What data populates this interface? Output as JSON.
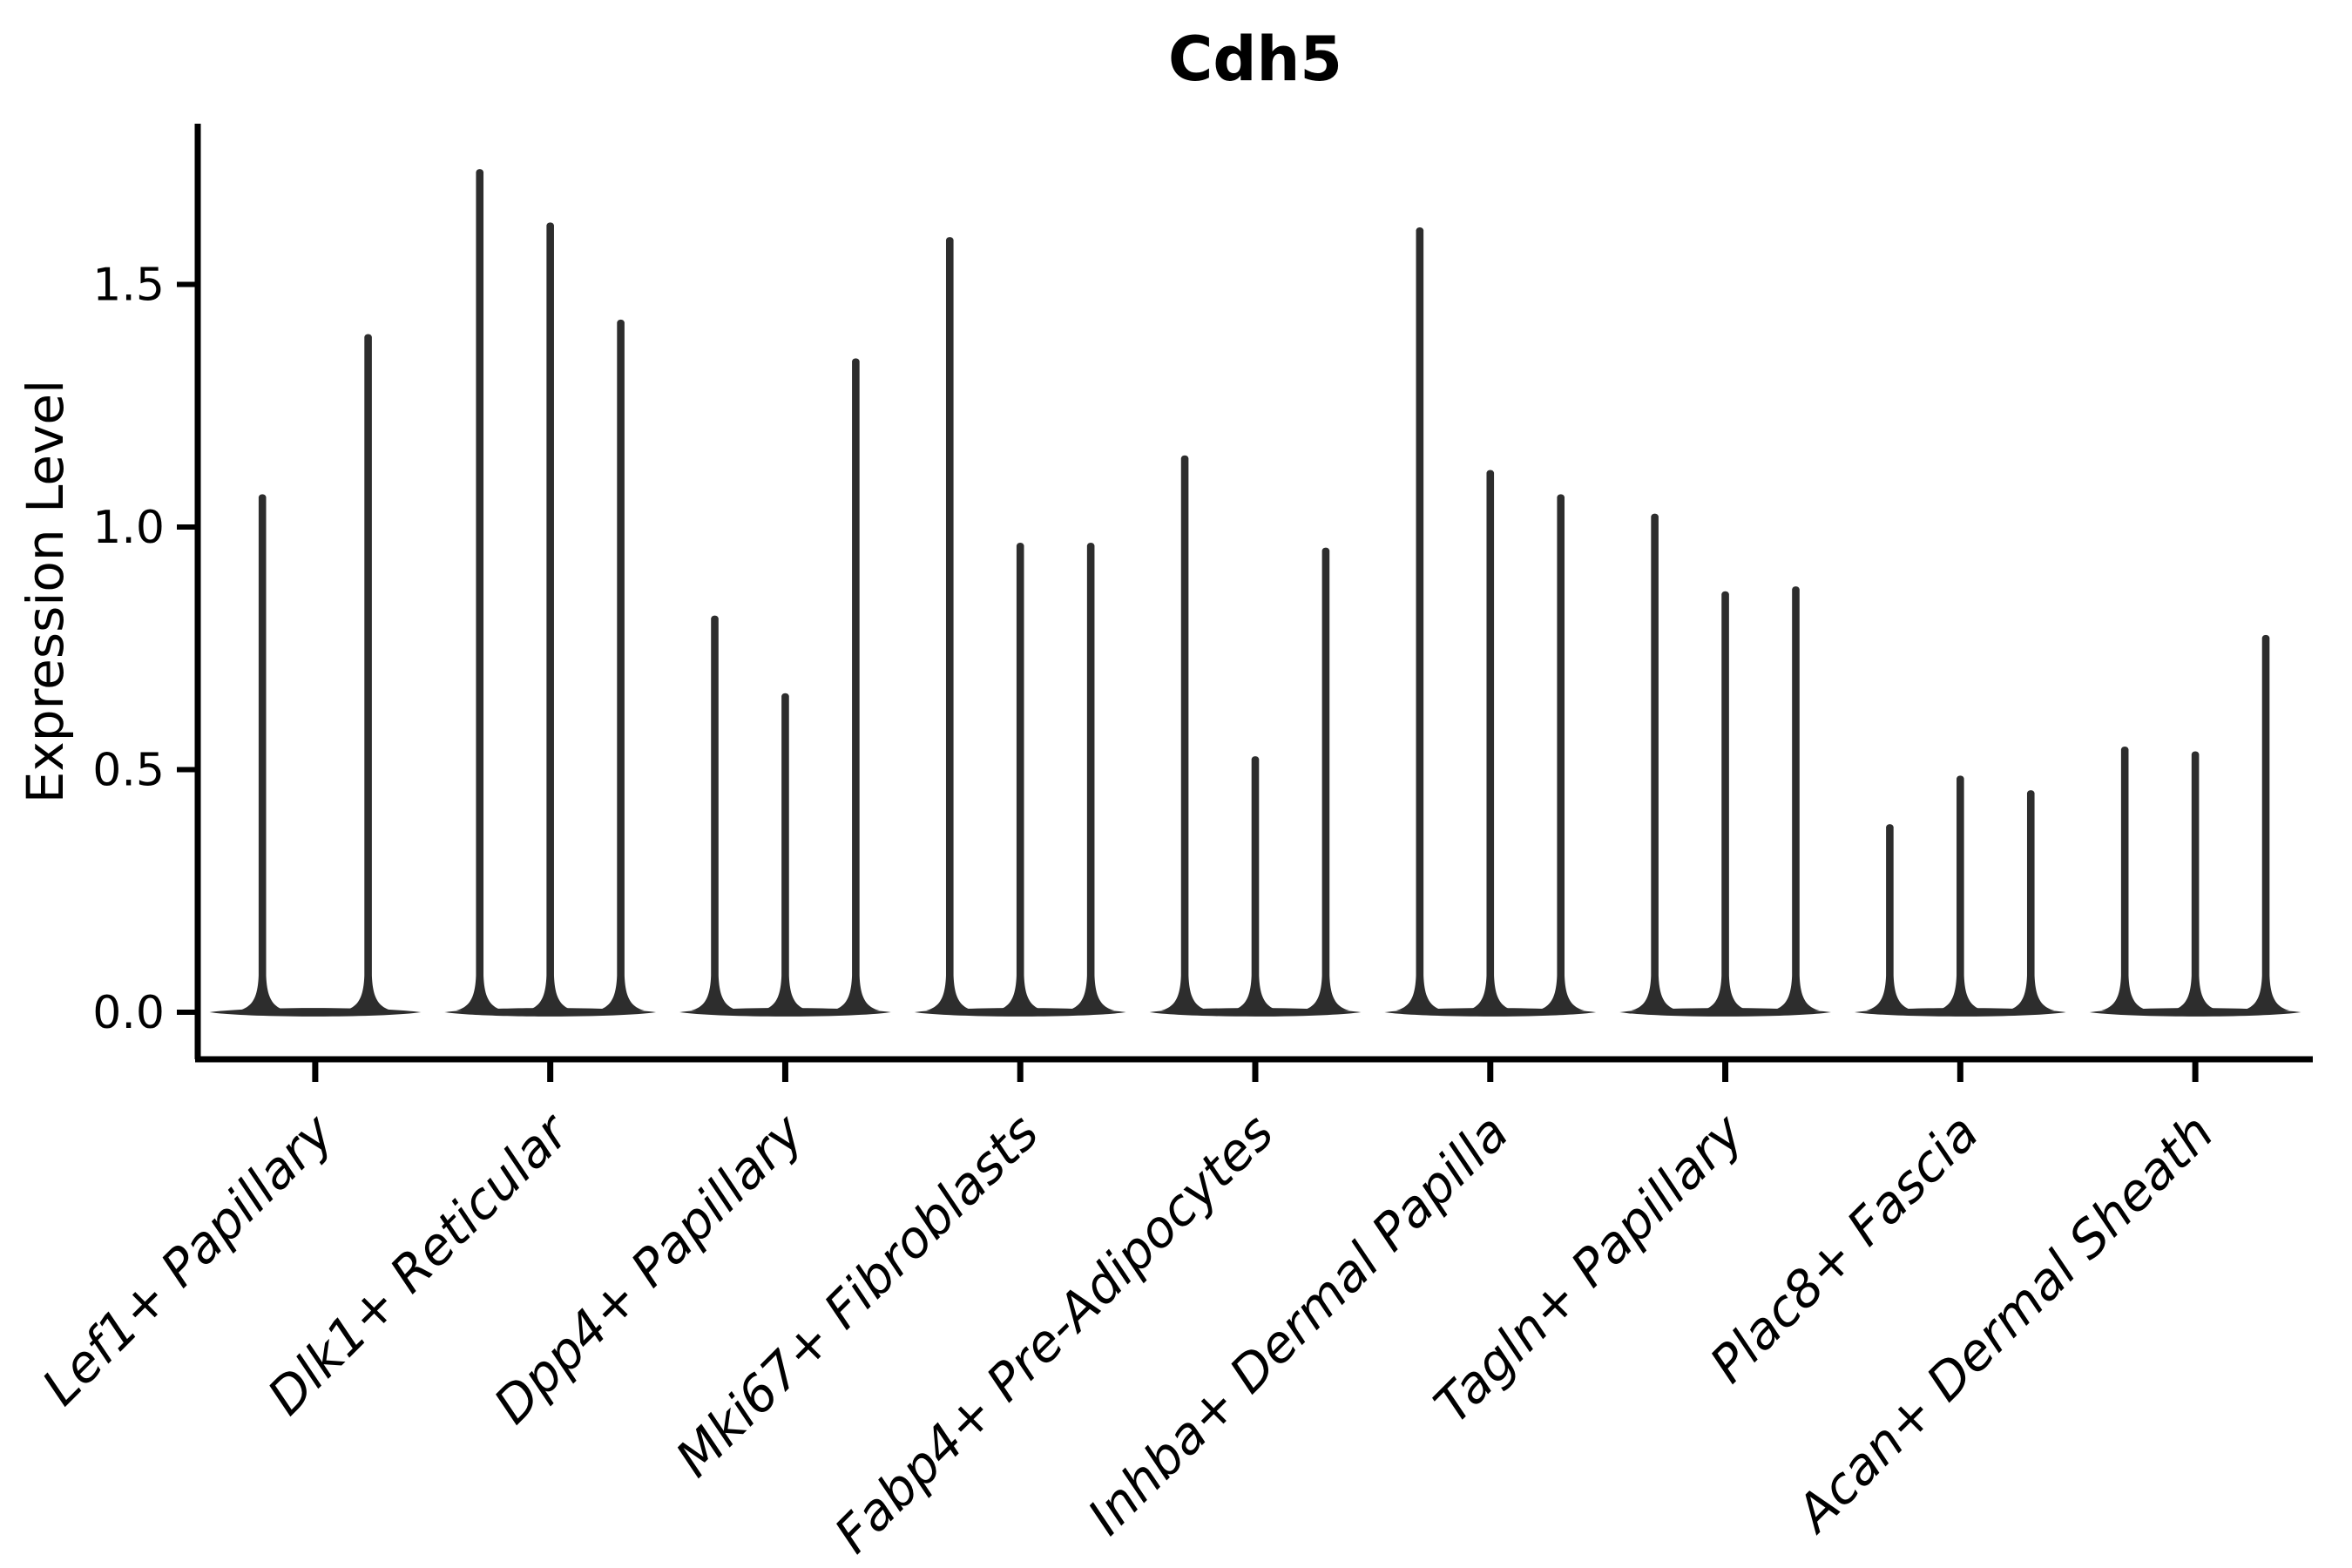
{
  "chart_data": {
    "type": "violin",
    "title": "Cdh5",
    "xlabel": "",
    "ylabel": "Expression Level",
    "categories": [
      "Lef1+ Papillary",
      "Dlk1+ Reticular",
      "Dpp4+ Papillary",
      "Mki67+ Fibroblasts",
      "Fabp4+ Pre-Adipocytes",
      "Inhba+ Dermal Papilla",
      "Tagln+ Papillary",
      "Plac8+ Fascia",
      "Acan+ Dermal Sheath"
    ],
    "violin_max_per_category": [
      [
        1.07,
        1.4
      ],
      [
        1.74,
        1.63,
        1.43
      ],
      [
        0.82,
        0.66,
        1.35
      ],
      [
        1.6,
        0.97,
        0.97
      ],
      [
        1.15,
        0.53,
        0.96
      ],
      [
        1.62,
        1.12,
        1.07
      ],
      [
        1.03,
        0.87,
        0.88
      ],
      [
        0.39,
        0.49,
        0.46
      ],
      [
        0.55,
        0.54,
        0.78
      ]
    ],
    "violin_min_per_category_value": 0.0,
    "yticks": [
      0.0,
      0.5,
      1.0,
      1.5
    ],
    "ytick_labels": [
      "0.0",
      "0.5",
      "1.0",
      "1.5"
    ],
    "ylim": [
      -0.1,
      1.83
    ],
    "grid": false,
    "legend": "none",
    "xtick_label_rotation_deg": 45,
    "colors": {
      "violin": "#2d2d2d",
      "axis": "#000000",
      "background": "#ffffff"
    }
  }
}
